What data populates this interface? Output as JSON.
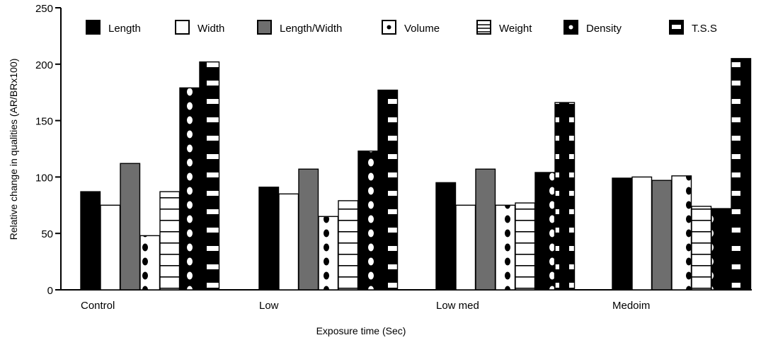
{
  "chart_data": {
    "type": "bar",
    "title": "",
    "xlabel": "Exposure time (Sec)",
    "ylabel": "Relative change in qualities (AR/BRx100)",
    "ylim": [
      0,
      250
    ],
    "yticks": [
      0,
      50,
      100,
      150,
      200,
      250
    ],
    "categories": [
      "Control",
      "Low",
      "Low med",
      "Medoim"
    ],
    "grid": false,
    "legend_position": "top",
    "series": [
      {
        "name": "Length",
        "values": [
          87,
          91,
          95,
          99
        ],
        "fill": "#000000",
        "pattern": "solid"
      },
      {
        "name": "Width",
        "values": [
          75,
          85,
          75,
          100
        ],
        "fill": "#ffffff",
        "pattern": "solid"
      },
      {
        "name": "Length/Width",
        "values": [
          112,
          107,
          107,
          97
        ],
        "fill": "#6e6e6e",
        "pattern": "solid"
      },
      {
        "name": "Volume",
        "values": [
          48,
          65,
          75,
          101
        ],
        "fill": "#ffffff",
        "pattern": "dots"
      },
      {
        "name": "Weight",
        "values": [
          87,
          79,
          77,
          74
        ],
        "fill": "#ffffff",
        "pattern": "hlines"
      },
      {
        "name": "Density",
        "values": [
          179,
          123,
          104,
          72
        ],
        "fill": "#000000",
        "pattern": "white-dots"
      },
      {
        "name": "T.S.S",
        "values": [
          202,
          177,
          166,
          205
        ],
        "fill": "#000000",
        "pattern": "white-dashes"
      }
    ]
  }
}
